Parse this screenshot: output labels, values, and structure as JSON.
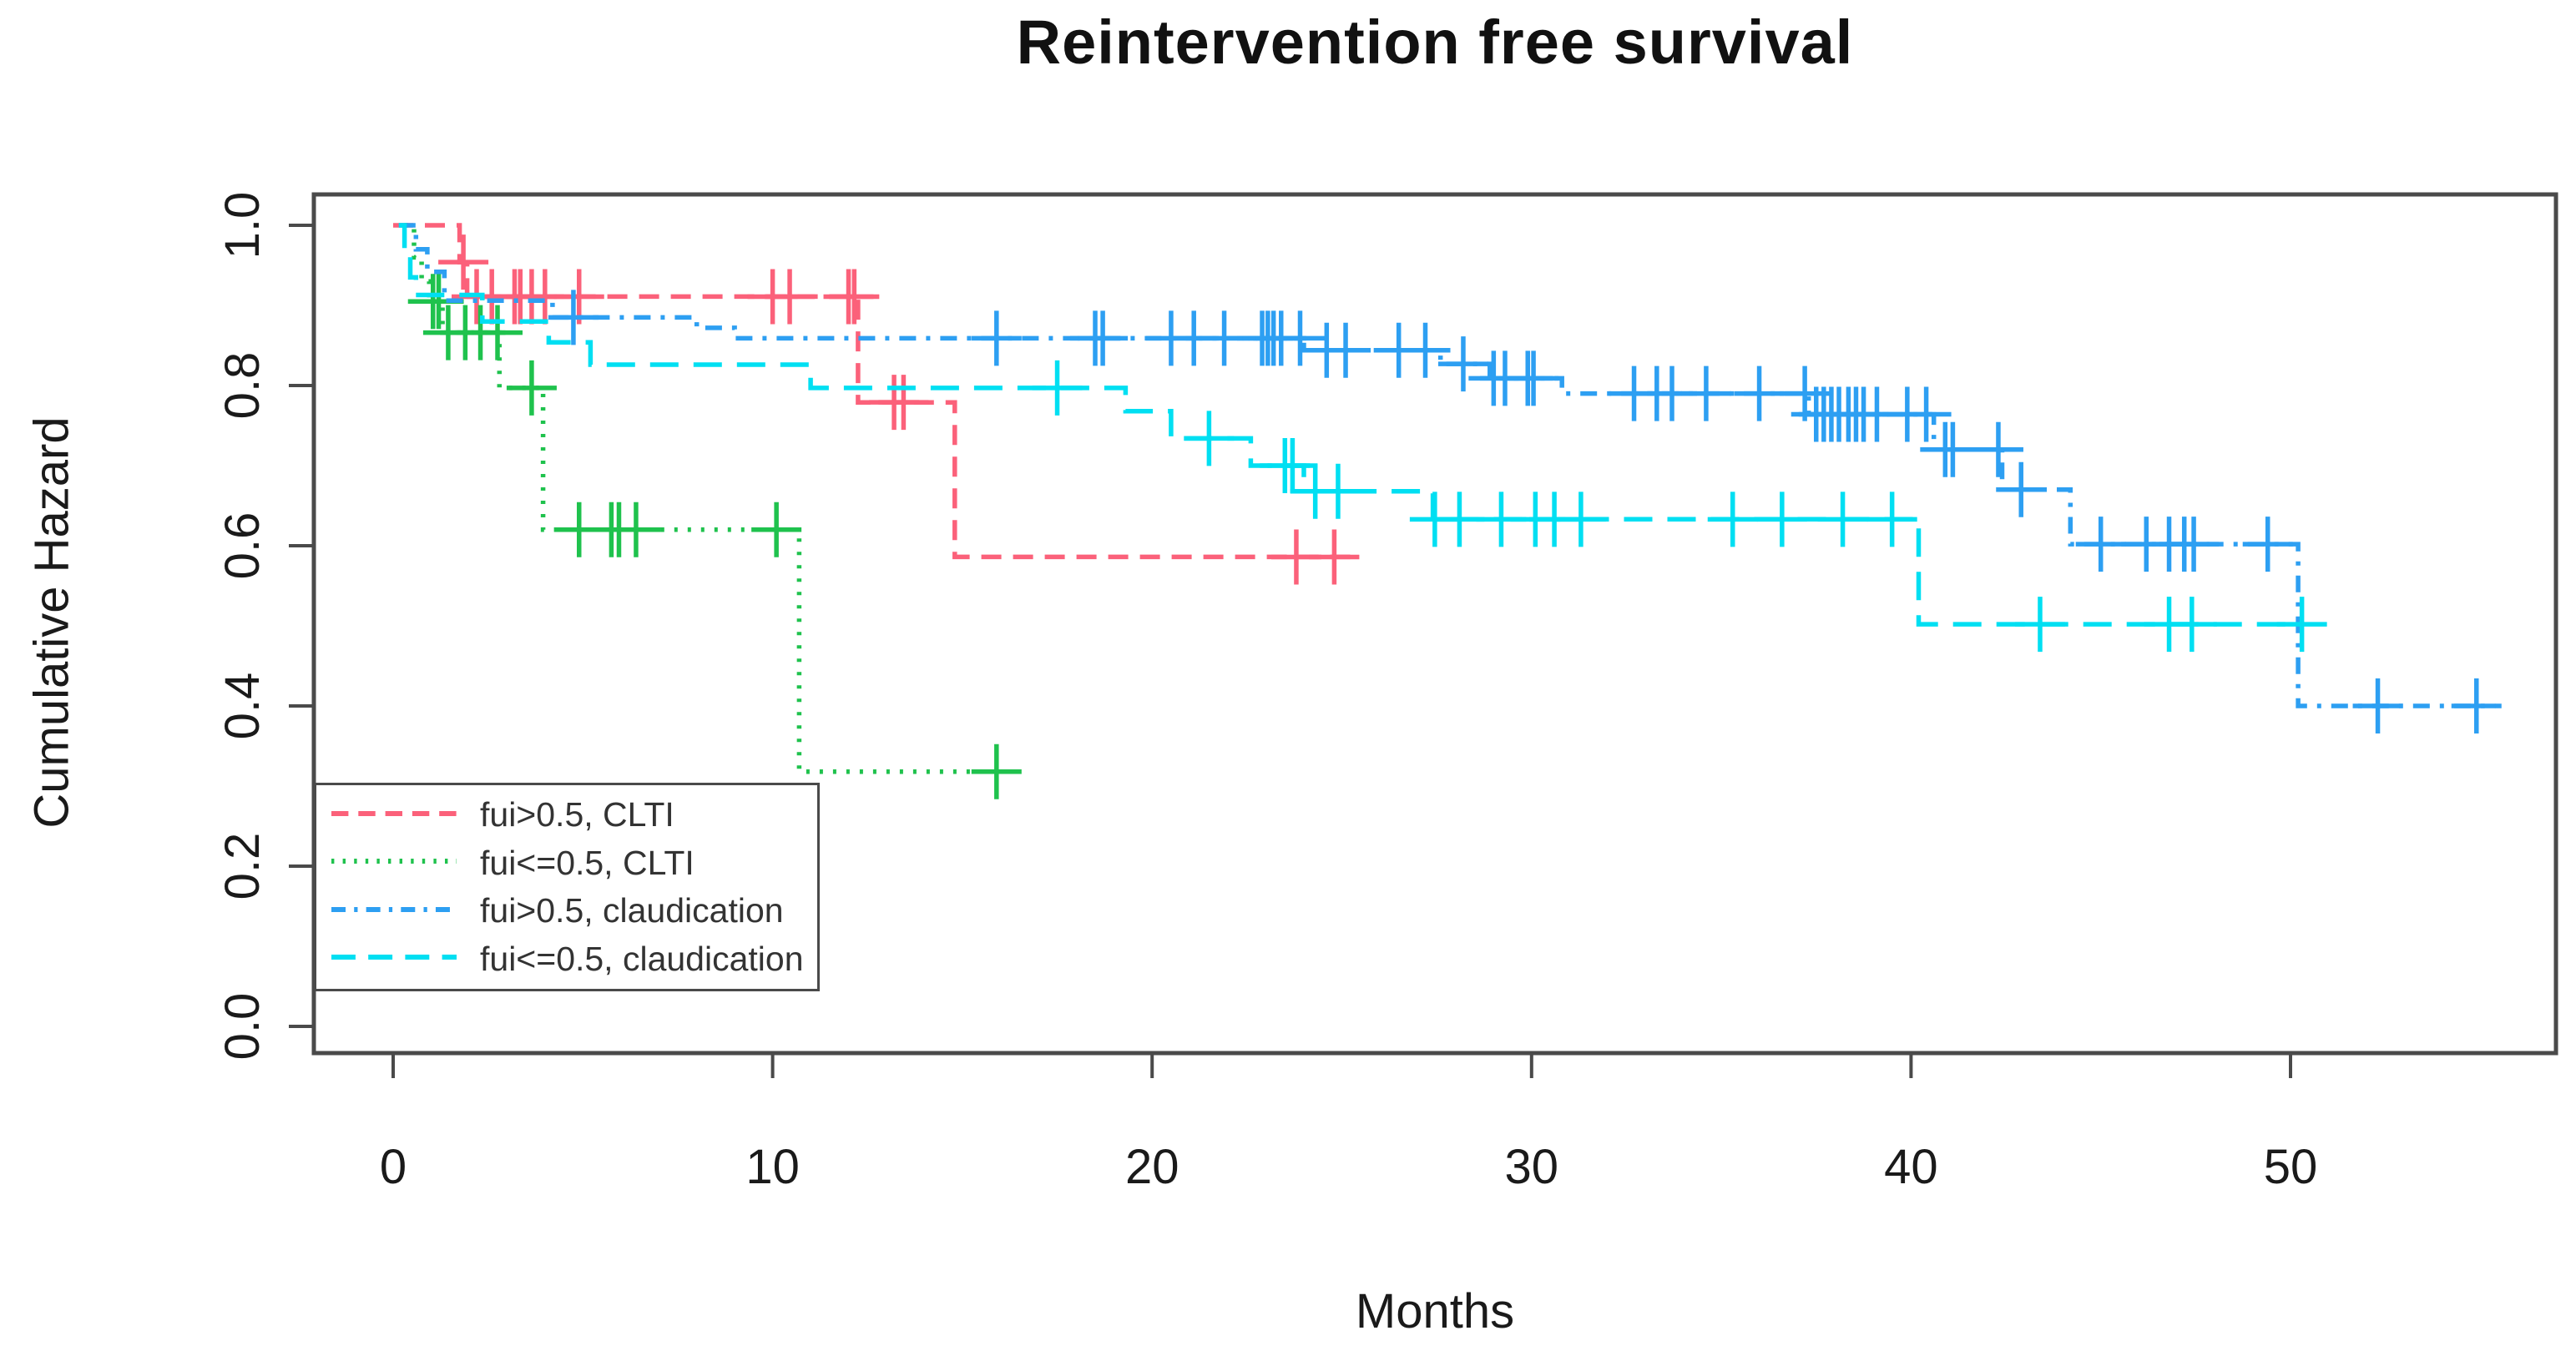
{
  "title": "Reintervention free survival",
  "axes": {
    "xlabel": "Months",
    "ylabel": "Cumulative Hazard",
    "x_ticks": [
      0,
      10,
      20,
      30,
      40,
      50
    ],
    "x_tick_labels": [
      "0",
      "10",
      "20",
      "30",
      "40",
      "50"
    ],
    "y_ticks": [
      0.0,
      0.2,
      0.4,
      0.6,
      0.8,
      1.0
    ],
    "y_tick_labels": [
      "0.0",
      "0.2",
      "0.4",
      "0.6",
      "0.8",
      "1.0"
    ]
  },
  "frame": {
    "box_color": "#4a4a4a",
    "text_color": "#1a1a1a"
  },
  "chart_data": {
    "type": "line",
    "subtype": "kaplan-meier-step-curves",
    "title": "Reintervention free survival",
    "xlabel": "Months",
    "ylabel": "Cumulative Hazard",
    "xlim": [
      0,
      57
    ],
    "ylim": [
      0,
      1.07
    ],
    "grid": false,
    "legend_position": "bottom-left",
    "censor_marker": "plus",
    "series": [
      {
        "id": "fui-gt-05-clti",
        "name": "fui>0.5, CLTI",
        "color": "#FB617A",
        "dash": [
          24,
          14
        ],
        "steps": [
          [
            0,
            1.0
          ],
          [
            1.75,
            0.954
          ],
          [
            1.95,
            0.911
          ],
          [
            12.25,
            0.779
          ],
          [
            14.8,
            0.586
          ]
        ],
        "end": 25.4,
        "censors": [
          [
            1.85,
            0.954
          ],
          [
            2.2,
            0.911
          ],
          [
            2.6,
            0.911
          ],
          [
            3.2,
            0.911
          ],
          [
            3.35,
            0.911
          ],
          [
            3.65,
            0.911
          ],
          [
            4.0,
            0.911
          ],
          [
            4.9,
            0.911
          ],
          [
            10.0,
            0.911
          ],
          [
            10.45,
            0.911
          ],
          [
            12.0,
            0.911
          ],
          [
            12.15,
            0.911
          ],
          [
            13.2,
            0.779
          ],
          [
            13.45,
            0.779
          ],
          [
            23.8,
            0.586
          ],
          [
            24.8,
            0.586
          ]
        ]
      },
      {
        "id": "fui-le-05-clti",
        "name": "fui<=0.5, CLTI",
        "color": "#1FC24D",
        "dash": [
          4,
          12
        ],
        "steps": [
          [
            0.3,
            1.0
          ],
          [
            0.55,
            0.96
          ],
          [
            0.75,
            0.93
          ],
          [
            0.95,
            0.905
          ],
          [
            1.3,
            0.866
          ],
          [
            2.8,
            0.797
          ],
          [
            3.95,
            0.62
          ],
          [
            10.7,
            0.318
          ]
        ],
        "end": 16.5,
        "censors": [
          [
            1.05,
            0.905
          ],
          [
            1.2,
            0.905
          ],
          [
            1.45,
            0.866
          ],
          [
            1.9,
            0.866
          ],
          [
            2.3,
            0.866
          ],
          [
            2.75,
            0.866
          ],
          [
            3.65,
            0.797
          ],
          [
            4.9,
            0.62
          ],
          [
            5.75,
            0.62
          ],
          [
            5.95,
            0.62
          ],
          [
            6.4,
            0.62
          ],
          [
            10.1,
            0.62
          ],
          [
            15.9,
            0.318
          ]
        ]
      },
      {
        "id": "fui-gt-05-claudication",
        "name": "fui>0.5, claudication",
        "color": "#2D9FF2",
        "dash": [
          20,
          12,
          5,
          12
        ],
        "steps": [
          [
            0.15,
            1.0
          ],
          [
            0.6,
            0.97
          ],
          [
            0.9,
            0.942
          ],
          [
            1.35,
            0.906
          ],
          [
            4.2,
            0.885
          ],
          [
            8.0,
            0.872
          ],
          [
            9.0,
            0.859
          ],
          [
            24.0,
            0.844
          ],
          [
            27.6,
            0.827
          ],
          [
            28.9,
            0.809
          ],
          [
            30.8,
            0.79
          ],
          [
            37.3,
            0.764
          ],
          [
            40.6,
            0.72
          ],
          [
            42.4,
            0.67
          ],
          [
            44.2,
            0.602
          ],
          [
            50.2,
            0.4
          ]
        ],
        "end": 55.4,
        "censors": [
          [
            4.75,
            0.885
          ],
          [
            15.9,
            0.859
          ],
          [
            18.5,
            0.859
          ],
          [
            18.7,
            0.859
          ],
          [
            20.5,
            0.859
          ],
          [
            21.1,
            0.859
          ],
          [
            21.9,
            0.859
          ],
          [
            22.9,
            0.859
          ],
          [
            23.05,
            0.859
          ],
          [
            23.2,
            0.859
          ],
          [
            23.4,
            0.859
          ],
          [
            23.9,
            0.859
          ],
          [
            24.6,
            0.844
          ],
          [
            25.1,
            0.844
          ],
          [
            26.5,
            0.844
          ],
          [
            27.2,
            0.844
          ],
          [
            28.2,
            0.827
          ],
          [
            29.0,
            0.809
          ],
          [
            29.3,
            0.809
          ],
          [
            29.9,
            0.809
          ],
          [
            30.05,
            0.809
          ],
          [
            32.7,
            0.79
          ],
          [
            33.3,
            0.79
          ],
          [
            33.7,
            0.79
          ],
          [
            34.6,
            0.79
          ],
          [
            36.0,
            0.79
          ],
          [
            37.2,
            0.79
          ],
          [
            37.5,
            0.764
          ],
          [
            37.7,
            0.764
          ],
          [
            37.9,
            0.764
          ],
          [
            38.1,
            0.764
          ],
          [
            38.35,
            0.764
          ],
          [
            38.55,
            0.764
          ],
          [
            38.75,
            0.764
          ],
          [
            39.1,
            0.764
          ],
          [
            39.9,
            0.764
          ],
          [
            40.4,
            0.764
          ],
          [
            40.9,
            0.72
          ],
          [
            41.1,
            0.72
          ],
          [
            42.3,
            0.72
          ],
          [
            42.9,
            0.67
          ],
          [
            45.0,
            0.602
          ],
          [
            46.2,
            0.602
          ],
          [
            46.8,
            0.602
          ],
          [
            47.2,
            0.602
          ],
          [
            47.45,
            0.602
          ],
          [
            49.4,
            0.602
          ],
          [
            52.3,
            0.4
          ],
          [
            54.9,
            0.4
          ]
        ]
      },
      {
        "id": "fui-le-05-claudication",
        "name": "fui<=0.5, claudication",
        "color": "#00DFF2",
        "dash": [
          34,
          18
        ],
        "steps": [
          [
            0.15,
            1.0
          ],
          [
            0.3,
            0.97
          ],
          [
            0.45,
            0.935
          ],
          [
            0.6,
            0.913
          ],
          [
            2.35,
            0.88
          ],
          [
            4.1,
            0.854
          ],
          [
            5.2,
            0.826
          ],
          [
            11.0,
            0.797
          ],
          [
            19.3,
            0.768
          ],
          [
            20.5,
            0.734
          ],
          [
            22.6,
            0.7
          ],
          [
            24.0,
            0.668
          ],
          [
            27.4,
            0.633
          ],
          [
            40.2,
            0.502
          ]
        ],
        "end": 50.3,
        "censors": [
          [
            17.5,
            0.797
          ],
          [
            21.5,
            0.734
          ],
          [
            23.5,
            0.7
          ],
          [
            23.7,
            0.7
          ],
          [
            24.3,
            0.668
          ],
          [
            24.9,
            0.668
          ],
          [
            27.45,
            0.633
          ],
          [
            28.1,
            0.633
          ],
          [
            29.2,
            0.633
          ],
          [
            30.1,
            0.633
          ],
          [
            30.6,
            0.633
          ],
          [
            31.3,
            0.633
          ],
          [
            35.3,
            0.633
          ],
          [
            36.6,
            0.633
          ],
          [
            38.2,
            0.633
          ],
          [
            39.5,
            0.633
          ],
          [
            43.4,
            0.502
          ],
          [
            46.8,
            0.502
          ],
          [
            47.4,
            0.502
          ],
          [
            50.3,
            0.502
          ]
        ]
      }
    ]
  }
}
